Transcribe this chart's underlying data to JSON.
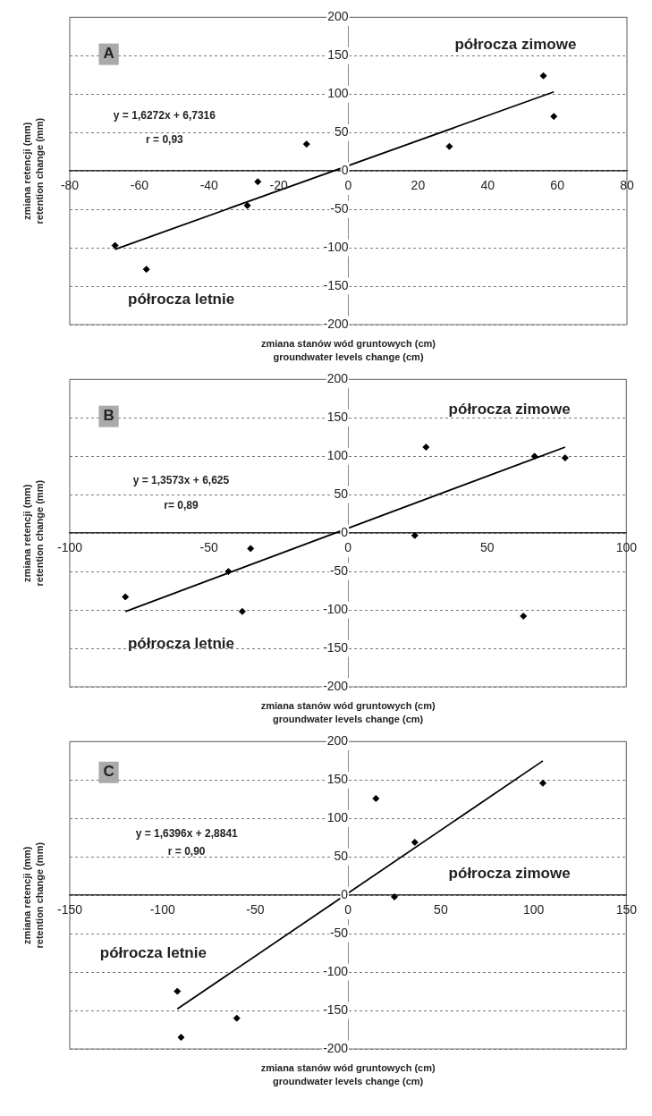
{
  "chart_data": [
    {
      "type": "scatter",
      "xlabel": "zmiana stanów wód gruntowych (cm)\ngroundwater levels change (cm)",
      "ylabel": "zmiana retencji (mm)\nretention change (mm)",
      "xlim": [
        -80,
        80
      ],
      "xticks": [
        -80,
        -60,
        -40,
        -20,
        0,
        20,
        40,
        60,
        80
      ],
      "ylim": [
        -200,
        200
      ],
      "yticks": [
        -200,
        -150,
        -100,
        -50,
        0,
        50,
        100,
        150,
        200
      ],
      "grid": "y",
      "marker": "diamond",
      "annotations": [
        "A",
        "y = 1,6272x + 6,7316",
        "r = 0,93",
        "półrocza zimowe",
        "półrocza letnie"
      ],
      "series": [
        {
          "type": "scatter",
          "color": "#000000",
          "x": [
            -67,
            -58,
            -29,
            -26,
            -12,
            29,
            56,
            59
          ],
          "values": [
            -97,
            -128,
            -45,
            -14,
            35,
            32,
            124,
            71
          ]
        },
        {
          "type": "line",
          "color": "#000000",
          "marker": "none",
          "x": [
            -67,
            59
          ],
          "values": [
            -102,
            103
          ]
        }
      ]
    },
    {
      "type": "scatter",
      "xlabel": "zmiana stanów wód gruntowych (cm)\ngroundwater levels change (cm)",
      "ylabel": "zmiana retencji (mm)\nretention change (mm)",
      "xlim": [
        -100,
        100
      ],
      "xticks": [
        -100,
        -50,
        0,
        50,
        100
      ],
      "ylim": [
        -200,
        200
      ],
      "yticks": [
        -200,
        -150,
        -100,
        -50,
        0,
        50,
        100,
        150,
        200
      ],
      "grid": "y",
      "marker": "diamond",
      "annotations": [
        "B",
        "y = 1,3573x + 6,625",
        "r= 0,89",
        "półrocza zimowe",
        "półrocza letnie"
      ],
      "series": [
        {
          "type": "scatter",
          "color": "#000000",
          "x": [
            -80,
            -43,
            -38,
            -35,
            24,
            28,
            63,
            67,
            78
          ],
          "values": [
            -83,
            -50,
            -102,
            -20,
            -3,
            112,
            -108,
            100,
            98
          ]
        },
        {
          "type": "line",
          "color": "#000000",
          "marker": "none",
          "x": [
            -80,
            78
          ],
          "values": [
            -102,
            112
          ]
        }
      ]
    },
    {
      "type": "scatter",
      "xlabel": "zmiana stanów wód gruntowych (cm)\ngroundwater levels change (cm)",
      "ylabel": "zmiana retencji (mm)\nretention change (mm)",
      "xlim": [
        -150,
        150
      ],
      "xticks": [
        -150,
        -100,
        -50,
        0,
        50,
        100,
        150
      ],
      "ylim": [
        -200,
        200
      ],
      "yticks": [
        -200,
        -150,
        -100,
        -50,
        0,
        50,
        100,
        150,
        200
      ],
      "grid": "y",
      "marker": "diamond",
      "annotations": [
        "C",
        "y = 1,6396x + 2,8841",
        "r = 0,90",
        "półrocza zimowe",
        "półrocza letnie"
      ],
      "series": [
        {
          "type": "scatter",
          "color": "#000000",
          "x": [
            -92,
            -90,
            -60,
            15,
            25,
            36,
            105
          ],
          "values": [
            -125,
            -185,
            -160,
            126,
            -2,
            69,
            146
          ]
        },
        {
          "type": "line",
          "color": "#000000",
          "marker": "none",
          "x": [
            -92,
            105
          ],
          "values": [
            -148,
            175
          ]
        }
      ]
    }
  ]
}
